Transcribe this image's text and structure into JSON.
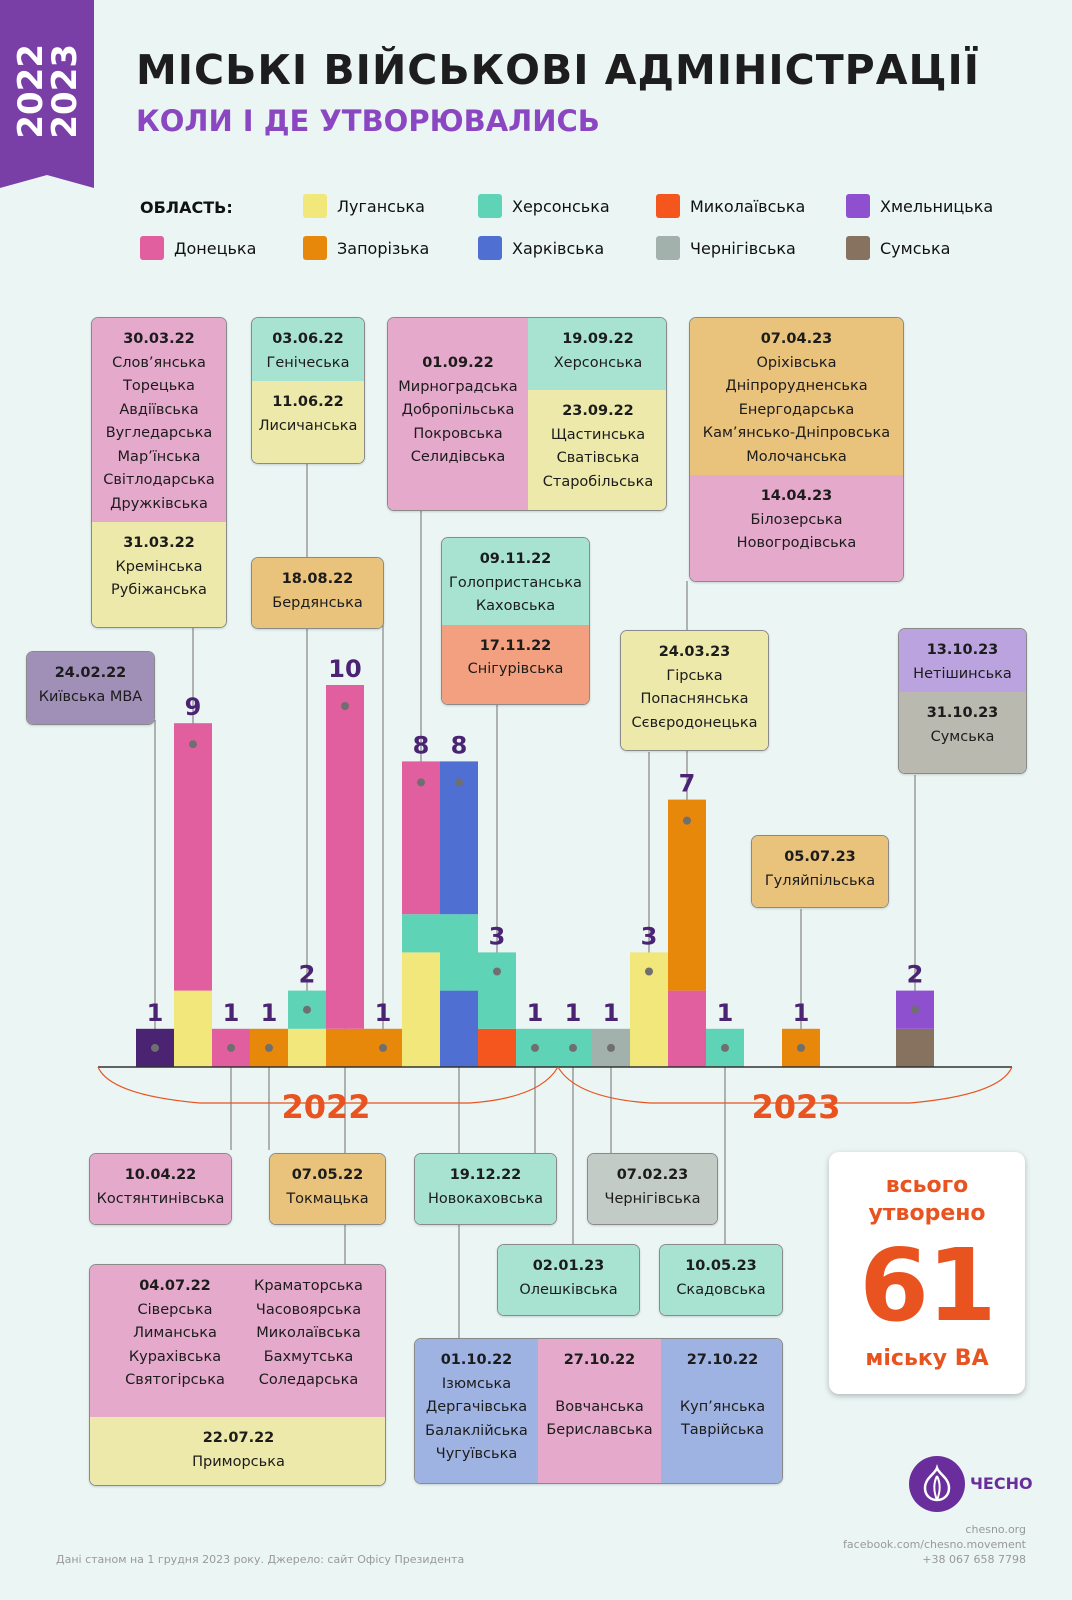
{
  "badge_years": [
    "2022",
    "2023"
  ],
  "title": "МІСЬКІ ВІЙСЬКОВІ АДМІНІСТРАЦІЇ",
  "subtitle": "КОЛИ І ДЕ УТВОРЮВАЛИСЬ",
  "legend_header": "ОБЛАСТЬ:",
  "legend": [
    {
      "name": "Луганська",
      "color": "#f2e77a"
    },
    {
      "name": "Херсонська",
      "color": "#5fd3b5"
    },
    {
      "name": "Миколаївська",
      "color": "#f4561d"
    },
    {
      "name": "Хмельницька",
      "color": "#8f50d0"
    },
    {
      "name": "Донецька",
      "color": "#e25f9f"
    },
    {
      "name": "Запорізька",
      "color": "#e8880a"
    },
    {
      "name": "Харківська",
      "color": "#4f6fd3"
    },
    {
      "name": "Чернігівська",
      "color": "#a3b1ac"
    },
    {
      "name": "Сумська",
      "color": "#86725f"
    }
  ],
  "chart_data": {
    "type": "stacked-bar",
    "title": "Міські військові адміністрації: коли і де утворювались",
    "period_labels": [
      "2022",
      "2023"
    ],
    "colors": {
      "kyiv": "#4a2373",
      "luh": "#f2e77a",
      "khers": "#5fd3b5",
      "mykol": "#f4561d",
      "khm": "#8f50d0",
      "don": "#e25f9f",
      "zap": "#e8880a",
      "khark": "#4f6fd3",
      "cher": "#a3b1ac",
      "sum": "#86725f"
    },
    "bars": [
      {
        "total": 1,
        "segments": [
          {
            "region": "kyiv",
            "count": 1
          }
        ]
      },
      {
        "total": 9,
        "segments": [
          {
            "region": "luh",
            "count": 2
          },
          {
            "region": "don",
            "count": 7
          }
        ]
      },
      {
        "total": 1,
        "segments": [
          {
            "region": "don",
            "count": 1
          }
        ]
      },
      {
        "total": 1,
        "segments": [
          {
            "region": "zap",
            "count": 1
          }
        ]
      },
      {
        "total": 2,
        "segments": [
          {
            "region": "luh",
            "count": 1
          },
          {
            "region": "khers",
            "count": 1
          }
        ]
      },
      {
        "total": 10,
        "segments": [
          {
            "region": "zap",
            "count": 1
          },
          {
            "region": "don",
            "count": 9
          }
        ]
      },
      {
        "total": 1,
        "segments": [
          {
            "region": "zap",
            "count": 1
          }
        ]
      },
      {
        "total": 8,
        "segments": [
          {
            "region": "luh",
            "count": 3
          },
          {
            "region": "khers",
            "count": 1
          },
          {
            "region": "don",
            "count": 4
          }
        ]
      },
      {
        "total": 8,
        "segments": [
          {
            "region": "khark",
            "count": 2
          },
          {
            "region": "khers",
            "count": 2
          },
          {
            "region": "khark",
            "count": 4
          }
        ]
      },
      {
        "total": 3,
        "segments": [
          {
            "region": "mykol",
            "count": 1
          },
          {
            "region": "khers",
            "count": 2
          }
        ]
      },
      {
        "total": 1,
        "segments": [
          {
            "region": "khers",
            "count": 1
          }
        ]
      },
      {
        "total": 1,
        "segments": [
          {
            "region": "khers",
            "count": 1
          }
        ]
      },
      {
        "total": 1,
        "segments": [
          {
            "region": "cher",
            "count": 1
          }
        ]
      },
      {
        "total": 3,
        "segments": [
          {
            "region": "luh",
            "count": 3
          }
        ]
      },
      {
        "total": 7,
        "segments": [
          {
            "region": "don",
            "count": 2
          },
          {
            "region": "zap",
            "count": 5
          }
        ]
      },
      {
        "total": 1,
        "segments": [
          {
            "region": "khers",
            "count": 1
          }
        ]
      },
      {
        "total": 0,
        "segments": []
      },
      {
        "total": 1,
        "segments": [
          {
            "region": "zap",
            "count": 1
          }
        ]
      },
      {
        "total": 0,
        "segments": []
      },
      {
        "total": 0,
        "segments": []
      },
      {
        "total": 2,
        "segments": [
          {
            "region": "sum",
            "count": 1
          },
          {
            "region": "khm",
            "count": 1
          }
        ]
      }
    ]
  },
  "callouts": {
    "c1": {
      "sections": [
        {
          "date": "30.03.22",
          "names": [
            "Слов’янська",
            "Торецька",
            "Авдіївська",
            "Вугледарська",
            "Мар’їнська",
            "Світлодарська",
            "Дружківська"
          ]
        },
        {
          "date": "31.03.22",
          "names": [
            "Кремінська",
            "Рубіжанська"
          ]
        }
      ]
    },
    "c2": {
      "sections": [
        {
          "date": "03.06.22",
          "names": [
            "Генічеська"
          ]
        },
        {
          "date": "11.06.22",
          "names": [
            "Лисичанська"
          ]
        }
      ]
    },
    "c3": {
      "date_a": "01.09.22",
      "names_a": [
        "Мирноградська",
        "Добропільська",
        "Покровська",
        "Селидівська"
      ],
      "date_b": "19.09.22",
      "names_b": [
        "Херсонська"
      ],
      "date_c": "23.09.22",
      "names_c": [
        "Щастинська",
        "Сватівська",
        "Старобільська"
      ]
    },
    "c4": {
      "sections": [
        {
          "date": "07.04.23",
          "names": [
            "Оріхівська",
            "Дніпрорудненська",
            "Енергодарська",
            "Кам’янсько-Дніпровська",
            "Молочанська"
          ]
        },
        {
          "date": "14.04.23",
          "names": [
            "Білозерська",
            "Новогродівська"
          ]
        }
      ]
    },
    "c5": {
      "sections": [
        {
          "date": "18.08.22",
          "names": [
            "Бердянська"
          ]
        }
      ]
    },
    "c6": {
      "sections": [
        {
          "date": "09.11.22",
          "names": [
            "Голопристанська",
            "Каховська"
          ]
        },
        {
          "date": "17.11.22",
          "names": [
            "Снігурівська"
          ]
        }
      ]
    },
    "c7": {
      "sections": [
        {
          "date": "24.02.22",
          "names": [
            "Київська МВА"
          ]
        }
      ]
    },
    "c8": {
      "sections": [
        {
          "date": "24.03.23",
          "names": [
            "Гірська",
            "Попаснянська",
            "Сєвєродонецька"
          ]
        }
      ]
    },
    "c9": {
      "sections": [
        {
          "date": "13.10.23",
          "names": [
            "Нетішинська"
          ]
        },
        {
          "date": "31.10.23",
          "names": [
            "Сумська"
          ]
        }
      ]
    },
    "c10": {
      "sections": [
        {
          "date": "05.07.23",
          "names": [
            "Гуляйпільська"
          ]
        }
      ]
    },
    "c11": {
      "sections": [
        {
          "date": "10.04.22",
          "names": [
            "Костянтинівська"
          ]
        }
      ]
    },
    "c12": {
      "sections": [
        {
          "date": "07.05.22",
          "names": [
            "Токмацька"
          ]
        }
      ]
    },
    "c13": {
      "sections": [
        {
          "date": "19.12.22",
          "names": [
            "Новокаховська"
          ]
        }
      ]
    },
    "c14": {
      "sections": [
        {
          "date": "07.02.23",
          "names": [
            "Чернігівська"
          ]
        }
      ]
    },
    "c15": {
      "sections": [
        {
          "date": "02.01.23",
          "names": [
            "Олешківська"
          ]
        }
      ]
    },
    "c16": {
      "sections": [
        {
          "date": "10.05.23",
          "names": [
            "Скадовська"
          ]
        }
      ]
    },
    "c17": {
      "date_a": "04.07.22",
      "names_a": [
        "Сіверська",
        "Лиманська",
        "Курахівська",
        "Святогірська"
      ],
      "names_a2": [
        "Краматорська",
        "Часовоярська",
        "Миколаївська",
        "Бахмутська",
        "Соледарська"
      ],
      "date_b": "22.07.22",
      "names_b": [
        "Приморська"
      ]
    },
    "c18": {
      "date_a": "01.10.22",
      "names_a": [
        "Ізюмська",
        "Дергачівська",
        "Балаклійська",
        "Чугуївська"
      ],
      "date_b": "27.10.22",
      "names_b": [
        "Вовчанська",
        "Бериславська"
      ],
      "date_c": "27.10.22",
      "names_c": [
        "Куп’янська",
        "Таврійська"
      ]
    }
  },
  "total": {
    "line1": "всього",
    "line2": "утворено",
    "number": "61",
    "line3": "міську ВА"
  },
  "footer_left": "Дані станом на 1 грудня 2023 року. Джерело: сайт Офісу Президента",
  "footer_right": [
    "chesno.org",
    "facebook.com/chesno.movement",
    "+38 067 658 7798"
  ],
  "logo_text": "ЧЕСНО"
}
